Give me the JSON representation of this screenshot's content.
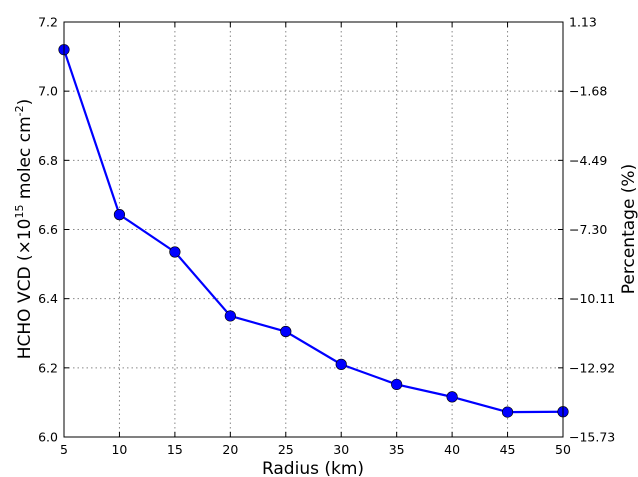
{
  "chart_data": {
    "type": "line",
    "title": "",
    "xlabel": "Radius (km)",
    "ylabel": {
      "prefix": "HCHO VCD (×10",
      "sup1": "15",
      "middle": " molec cm",
      "sup2": "-2",
      "suffix": ")"
    },
    "y2label": "Percentage (%)",
    "xlim": [
      5,
      50
    ],
    "ylim": [
      6.0,
      7.2
    ],
    "xticks": [
      "5",
      "10",
      "15",
      "20",
      "25",
      "30",
      "35",
      "40",
      "45",
      "50"
    ],
    "yticks": [
      "6.0",
      "6.2",
      "6.4",
      "6.6",
      "6.8",
      "7.0",
      "7.2"
    ],
    "y2ticks": [
      "−15.73",
      "−12.92",
      "−10.11",
      "−7.30",
      "−4.49",
      "−1.68",
      "1.13"
    ],
    "grid": true,
    "color": "#0000ff",
    "series": [
      {
        "x": [
          5,
          10,
          15,
          20,
          25,
          30,
          35,
          40,
          45,
          50
        ],
        "values": [
          7.12,
          6.643,
          6.535,
          6.35,
          6.305,
          6.21,
          6.152,
          6.116,
          6.072,
          6.073
        ]
      }
    ]
  }
}
